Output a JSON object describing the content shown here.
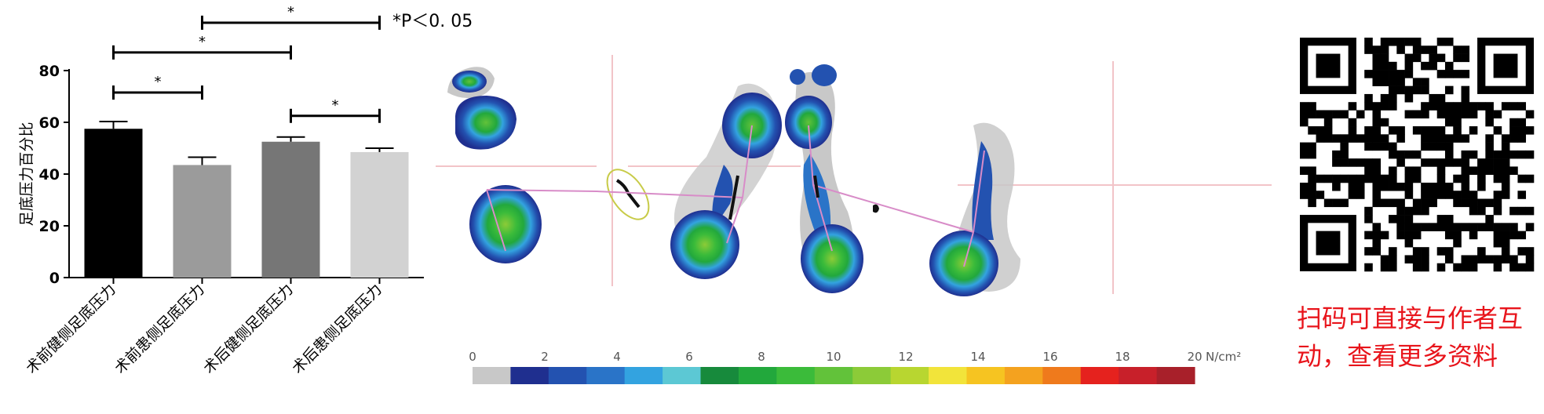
{
  "chart_data": {
    "type": "bar",
    "categories": [
      "术前健侧足底压力",
      "术前患侧足底压力",
      "术后健侧足底压力",
      "术后患侧足底压力"
    ],
    "values": [
      57.5,
      43.5,
      52.5,
      48.5
    ],
    "errors": [
      2.8,
      3.0,
      1.8,
      1.5
    ],
    "colors": [
      "#000000",
      "#9b9b9b",
      "#767676",
      "#d2d2d2"
    ],
    "ylabel": "足底压力百分比",
    "ylim": [
      0,
      80
    ],
    "yticks": [
      0,
      20,
      40,
      60,
      80
    ],
    "significance": [
      {
        "from": 0,
        "to": 1,
        "label": "*"
      },
      {
        "from": 0,
        "to": 2,
        "label": "*"
      },
      {
        "from": 1,
        "to": 3,
        "label": "*"
      },
      {
        "from": 2,
        "to": 3,
        "label": "*"
      }
    ],
    "note": "*P＜0. 05"
  },
  "pressure_map": {
    "colorbar_ticks": [
      "0",
      "2",
      "4",
      "6",
      "8",
      "10",
      "12",
      "14",
      "16",
      "18",
      "20"
    ],
    "unit": "N/cm²",
    "colorbar_colors": [
      "#c8c8c8",
      "#1f2f8f",
      "#2352b0",
      "#2a74c8",
      "#33a3e0",
      "#5cc8d4",
      "#178a3c",
      "#22a83c",
      "#3bbb3a",
      "#62c23a",
      "#8ccb38",
      "#b8d630",
      "#f2e43a",
      "#f6c421",
      "#f4a21f",
      "#ef7a1c",
      "#e5221e",
      "#c8202a",
      "#a8202a"
    ]
  },
  "promo": {
    "line1": "扫码可直接与作者互",
    "line2": "动，查看更多资料"
  }
}
